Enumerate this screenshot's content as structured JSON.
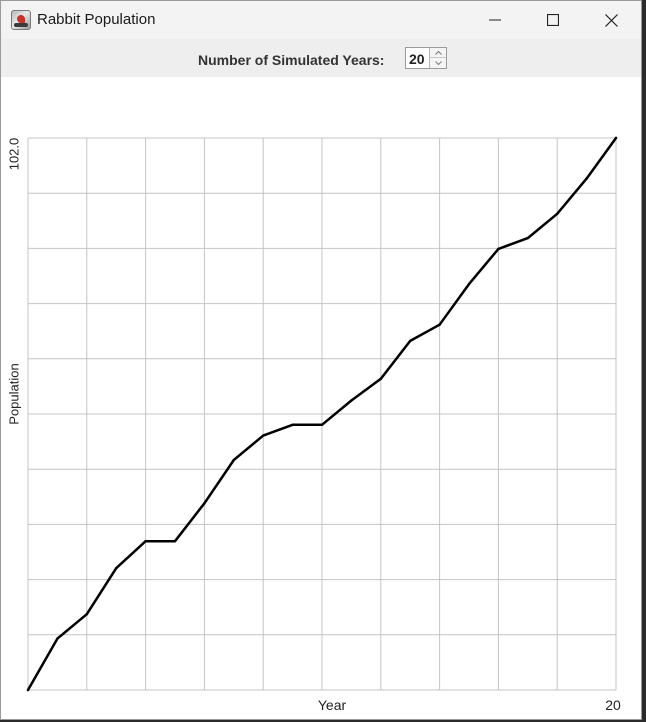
{
  "window": {
    "title": "Rabbit Population",
    "icon": "java-app-icon",
    "controls": [
      "minimize-icon",
      "maximize-icon",
      "close-icon"
    ]
  },
  "toolbar": {
    "years_label": "Number of Simulated Years:",
    "years_value": "20",
    "spinner_up_icon": "chevron-up-icon",
    "spinner_down_icon": "chevron-down-icon"
  },
  "chart_data": {
    "type": "line",
    "title": "",
    "xlabel": "Year",
    "ylabel": "Population",
    "x_max_label": "20",
    "y_max_label": "102.0",
    "xlim": [
      0,
      20
    ],
    "ylim": [
      0,
      102
    ],
    "grid": true,
    "grid_columns": 10,
    "grid_rows": 10,
    "line_color": "#000000",
    "grid_color": "#c4c4c4",
    "series": [
      {
        "x": [
          0,
          1,
          2,
          3,
          4,
          5,
          6,
          7,
          8,
          9,
          10,
          11,
          12,
          13,
          14,
          15,
          16,
          17,
          18,
          19,
          20
        ],
        "values": [
          0,
          9.5,
          14,
          22.5,
          27.5,
          27.5,
          34.5,
          42.5,
          47,
          49,
          49,
          53.5,
          57.5,
          64.5,
          67.5,
          75,
          81.5,
          83.5,
          88,
          94.5,
          102
        ]
      }
    ]
  }
}
